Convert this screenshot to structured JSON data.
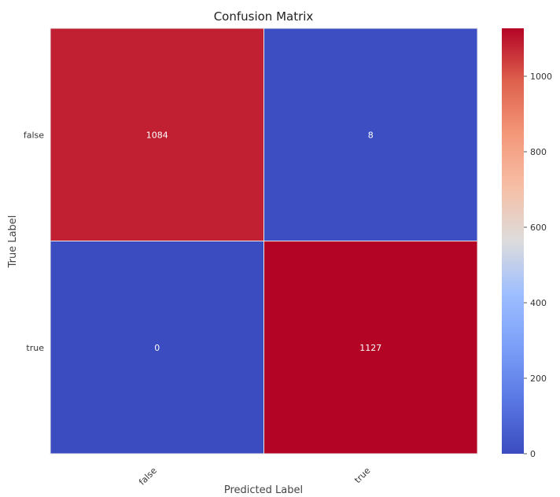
{
  "chart_data": {
    "type": "heatmap",
    "title": "Confusion Matrix",
    "xlabel": "Predicted Label",
    "ylabel": "True Label",
    "x_categories": [
      "false",
      "true"
    ],
    "y_categories": [
      "false",
      "true"
    ],
    "values": [
      [
        1084,
        8
      ],
      [
        0,
        1127
      ]
    ],
    "colormap": "coolwarm",
    "colorbar": {
      "range": [
        0,
        1127
      ],
      "ticks": [
        0,
        200,
        400,
        600,
        800,
        1000
      ]
    },
    "grid": false
  }
}
